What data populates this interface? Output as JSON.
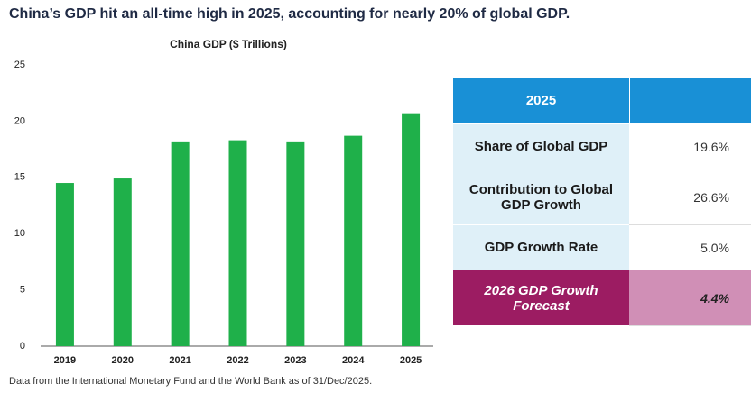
{
  "title": "China’s GDP hit an all-time high in 2025, accounting for nearly 20% of global GDP.",
  "chart_data": {
    "type": "bar",
    "title": "China GDP ($ Trillions)",
    "categories": [
      "2019",
      "2020",
      "2021",
      "2022",
      "2023",
      "2024",
      "2025"
    ],
    "values": [
      14.5,
      14.9,
      18.2,
      18.3,
      18.2,
      18.7,
      20.7
    ],
    "color": "#1fb04a",
    "ylim": [
      0,
      25
    ],
    "yticks": [
      0,
      5,
      10,
      15,
      20,
      25
    ],
    "grid": false
  },
  "footnote": "Data from the International Monetary Fund and the World Bank as of 31/Dec/2025.",
  "table": {
    "header": "2025",
    "rows": [
      [
        "Share of Global GDP",
        "19.6%"
      ],
      [
        "Contribution to Global GDP Growth",
        "26.6%"
      ],
      [
        "GDP Growth Rate",
        "5.0%"
      ],
      [
        "2026 GDP Growth Forecast",
        "4.4%"
      ]
    ]
  }
}
